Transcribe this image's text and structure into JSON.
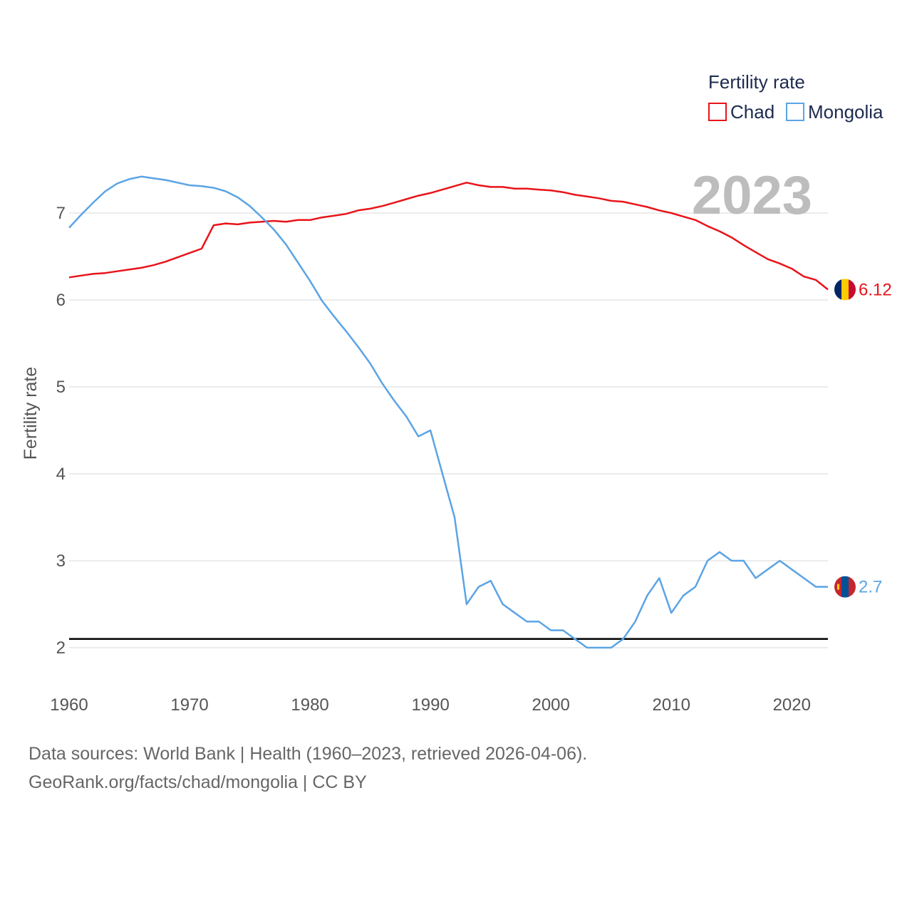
{
  "chart_data": {
    "type": "line",
    "ylabel": "Fertility rate",
    "legend_title": "Fertility rate",
    "year_label": "2023",
    "x_ticks": [
      "1960",
      "1970",
      "1980",
      "1990",
      "2000",
      "2010",
      "2020"
    ],
    "y_ticks": [
      "2",
      "3",
      "4",
      "5",
      "6",
      "7"
    ],
    "xlim": [
      1960,
      2023
    ],
    "ylim": [
      1.5,
      7.6
    ],
    "reference_line": 2.1,
    "x": [
      1960,
      1961,
      1962,
      1963,
      1964,
      1965,
      1966,
      1967,
      1968,
      1969,
      1970,
      1971,
      1972,
      1973,
      1974,
      1975,
      1976,
      1977,
      1978,
      1979,
      1980,
      1981,
      1982,
      1983,
      1984,
      1985,
      1986,
      1987,
      1988,
      1989,
      1990,
      1991,
      1992,
      1993,
      1994,
      1995,
      1996,
      1997,
      1998,
      1999,
      2000,
      2001,
      2002,
      2003,
      2004,
      2005,
      2006,
      2007,
      2008,
      2009,
      2010,
      2011,
      2012,
      2013,
      2014,
      2015,
      2016,
      2017,
      2018,
      2019,
      2020,
      2021,
      2022,
      2023
    ],
    "series": [
      {
        "name": "Chad",
        "color": "#e8141a",
        "end_value_label": "6.12",
        "values": [
          6.26,
          6.28,
          6.3,
          6.31,
          6.33,
          6.35,
          6.37,
          6.4,
          6.44,
          6.49,
          6.54,
          6.59,
          6.86,
          6.88,
          6.87,
          6.89,
          6.9,
          6.91,
          6.9,
          6.92,
          6.92,
          6.95,
          6.97,
          6.99,
          7.03,
          7.05,
          7.08,
          7.12,
          7.16,
          7.2,
          7.23,
          7.27,
          7.31,
          7.35,
          7.32,
          7.3,
          7.3,
          7.28,
          7.28,
          7.27,
          7.26,
          7.24,
          7.21,
          7.19,
          7.17,
          7.14,
          7.13,
          7.1,
          7.07,
          7.03,
          7.0,
          6.96,
          6.92,
          6.85,
          6.79,
          6.72,
          6.63,
          6.55,
          6.47,
          6.42,
          6.36,
          6.27,
          6.23,
          6.12
        ]
      },
      {
        "name": "Mongolia",
        "color": "#5ba4e5",
        "end_value_label": "2.7",
        "values": [
          6.83,
          6.98,
          7.12,
          7.25,
          7.34,
          7.39,
          7.42,
          7.4,
          7.38,
          7.35,
          7.32,
          7.31,
          7.29,
          7.25,
          7.18,
          7.08,
          6.95,
          6.81,
          6.64,
          6.43,
          6.22,
          5.99,
          5.81,
          5.64,
          5.46,
          5.27,
          5.04,
          4.84,
          4.66,
          4.43,
          4.5,
          4.0,
          3.5,
          2.5,
          2.7,
          2.77,
          2.5,
          2.4,
          2.3,
          2.3,
          2.2,
          2.2,
          2.1,
          2.0,
          2.0,
          2.0,
          2.1,
          2.3,
          2.6,
          2.8,
          2.4,
          2.6,
          2.7,
          3.0,
          3.1,
          3.0,
          3.0,
          2.8,
          2.9,
          3.0,
          2.9,
          2.8,
          2.7,
          2.7
        ]
      }
    ]
  },
  "footer": {
    "sources": "Data sources: World Bank | Health (1960–2023, retrieved 2026-04-06).",
    "link": "GeoRank.org/facts/chad/mongolia | CC BY"
  },
  "flags": {
    "chad": [
      "#002664",
      "#fecb00",
      "#c60c30"
    ],
    "mongolia": [
      "#c4272f",
      "#015197",
      "#c4272f"
    ]
  }
}
